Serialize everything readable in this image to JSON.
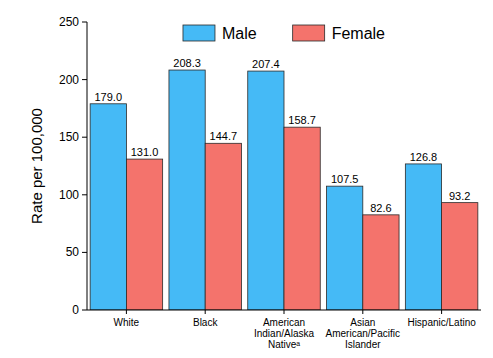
{
  "chart_data": {
    "type": "bar",
    "categories": [
      "White",
      "Black",
      "American Indian/Alaska Nativeᵃ",
      "Asian American/Pacific Islander",
      "Hispanic/Latino"
    ],
    "series": [
      {
        "name": "Male",
        "color": "#45baf6",
        "values": [
          179.0,
          208.3,
          207.4,
          107.5,
          126.8
        ],
        "value_labels": [
          "179.0",
          "208.3",
          "207.4",
          "107.5",
          "126.8"
        ]
      },
      {
        "name": "Female",
        "color": "#f4736c",
        "values": [
          131.0,
          144.7,
          158.7,
          82.6,
          93.2
        ],
        "value_labels": [
          "131.0",
          "144.7",
          "158.7",
          "82.6",
          "93.2"
        ]
      }
    ],
    "y_label": "Rate per 100,000",
    "ylim": [
      0,
      250
    ],
    "yticks": [
      0,
      50,
      100,
      150,
      200,
      250
    ],
    "grid": false,
    "legend": "top",
    "data_labels": true
  }
}
